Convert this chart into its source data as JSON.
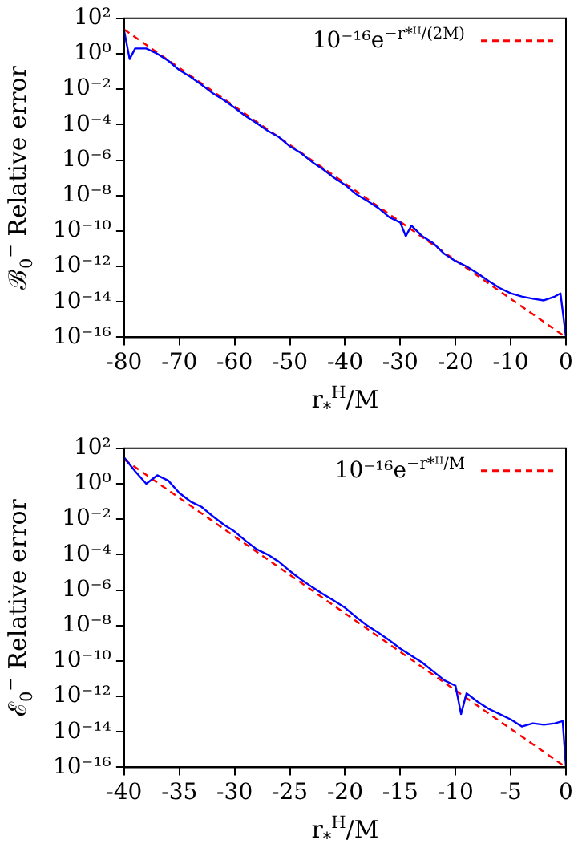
{
  "chart_data": [
    {
      "type": "line",
      "xlabel": "r$_{*}$$^{H}$/M",
      "ylabel": "ℬ$_{0}$$^{−}$ Relative error",
      "log": "y",
      "grid": false,
      "legend": "top right",
      "marker": "none",
      "xlim": [
        -80,
        0
      ],
      "xticks": [
        -80,
        -70,
        -60,
        -50,
        -40,
        -30,
        -20,
        -10,
        0
      ],
      "ylim": [
        1e-16,
        100
      ],
      "yticks": [
        {
          "value": 100,
          "label": "10²"
        },
        {
          "value": 1,
          "label": "10⁰"
        },
        {
          "value": 0.01,
          "label": "10⁻²"
        },
        {
          "value": 0.0001,
          "label": "10⁻⁴"
        },
        {
          "value": 1e-06,
          "label": "10⁻⁶"
        },
        {
          "value": 1e-08,
          "label": "10⁻⁸"
        },
        {
          "value": 1e-10,
          "label": "10⁻¹⁰"
        },
        {
          "value": 1e-12,
          "label": "10⁻¹²"
        },
        {
          "value": 1e-14,
          "label": "10⁻¹⁴"
        },
        {
          "value": 1e-16,
          "label": "10⁻¹⁶"
        }
      ],
      "series": [
        {
          "color": "#0000ff",
          "line_style": "solid",
          "x": [
            -80,
            -79,
            -78,
            -76,
            -74,
            -72,
            -70,
            -68,
            -66,
            -64,
            -62,
            -60,
            -58,
            -56,
            -54,
            -52,
            -50,
            -48,
            -46,
            -44,
            -42,
            -40,
            -38,
            -36,
            -34,
            -32,
            -30,
            -29,
            -28,
            -26,
            -24,
            -22,
            -20,
            -18,
            -16,
            -14,
            -12,
            -10,
            -8,
            -6,
            -4,
            -2,
            -1,
            0
          ],
          "values": [
            20,
            0.5,
            2,
            2,
            1,
            0.4,
            0.12,
            0.05,
            0.018,
            0.006,
            0.0025,
            0.0009,
            0.0003,
            0.00012,
            4.5e-05,
            2e-05,
            6e-06,
            2.5e-06,
            8e-07,
            3e-07,
            1e-07,
            4e-08,
            1.2e-08,
            5e-09,
            2e-09,
            6e-10,
            3e-10,
            5e-11,
            2e-10,
            5e-11,
            2e-11,
            5e-12,
            2e-12,
            1e-12,
            4e-13,
            1.5e-13,
            6e-14,
            3e-14,
            2e-14,
            1.5e-14,
            1.2e-14,
            2e-14,
            3e-14,
            1e-16
          ]
        },
        {
          "name": "10⁻¹⁶e$^{−r*ᴴ/(2M)}$",
          "color": "#ff0000",
          "line_style": "dashed",
          "x": [
            -80,
            0
          ],
          "values": [
            23.5,
            1e-16
          ]
        }
      ]
    },
    {
      "type": "line",
      "xlabel": "r$_{*}$$^{H}$/M",
      "ylabel": "ℰ$_{0}$$^{−}$ Relative error",
      "log": "y",
      "grid": false,
      "legend": "top right",
      "marker": "none",
      "xlim": [
        -40,
        0
      ],
      "xticks": [
        -40,
        -35,
        -30,
        -25,
        -20,
        -15,
        -10,
        -5,
        0
      ],
      "ylim": [
        1e-16,
        100
      ],
      "yticks": [
        {
          "value": 100,
          "label": "10²"
        },
        {
          "value": 1,
          "label": "10⁰"
        },
        {
          "value": 0.01,
          "label": "10⁻²"
        },
        {
          "value": 0.0001,
          "label": "10⁻⁴"
        },
        {
          "value": 1e-06,
          "label": "10⁻⁶"
        },
        {
          "value": 1e-08,
          "label": "10⁻⁸"
        },
        {
          "value": 1e-10,
          "label": "10⁻¹⁰"
        },
        {
          "value": 1e-12,
          "label": "10⁻¹²"
        },
        {
          "value": 1e-14,
          "label": "10⁻¹⁴"
        },
        {
          "value": 1e-16,
          "label": "10⁻¹⁶"
        }
      ],
      "series": [
        {
          "color": "#0000ff",
          "line_style": "solid",
          "x": [
            -40,
            -39,
            -38,
            -37,
            -36,
            -35,
            -34,
            -33,
            -32,
            -31,
            -30,
            -29,
            -28,
            -27,
            -26,
            -25,
            -24,
            -23,
            -22,
            -21,
            -20,
            -19,
            -18,
            -17,
            -16,
            -15,
            -14,
            -13,
            -12,
            -11,
            -10,
            -9.5,
            -9,
            -8,
            -7,
            -6,
            -5,
            -4,
            -3,
            -2,
            -1,
            -0.3,
            0
          ],
          "values": [
            30,
            5,
            1,
            3,
            1.5,
            0.3,
            0.1,
            0.05,
            0.015,
            0.005,
            0.002,
            0.0006,
            0.0002,
            0.0001,
            4e-05,
            1.2e-05,
            4e-06,
            1.5e-06,
            6e-07,
            2.5e-07,
            1e-07,
            3e-08,
            1e-08,
            4e-09,
            1.5e-09,
            5e-10,
            2e-10,
            8e-11,
            2.5e-11,
            8e-12,
            4e-12,
            1e-13,
            1.5e-12,
            5e-13,
            2e-13,
            1e-13,
            5e-14,
            2e-14,
            3e-14,
            2.5e-14,
            3e-14,
            4e-14,
            1e-16
          ]
        },
        {
          "name": "10⁻¹⁶e$^{−r*ᴴ/M}$",
          "color": "#ff0000",
          "line_style": "dashed",
          "x": [
            -40,
            0
          ],
          "values": [
            23.5,
            1e-16
          ]
        }
      ]
    }
  ]
}
